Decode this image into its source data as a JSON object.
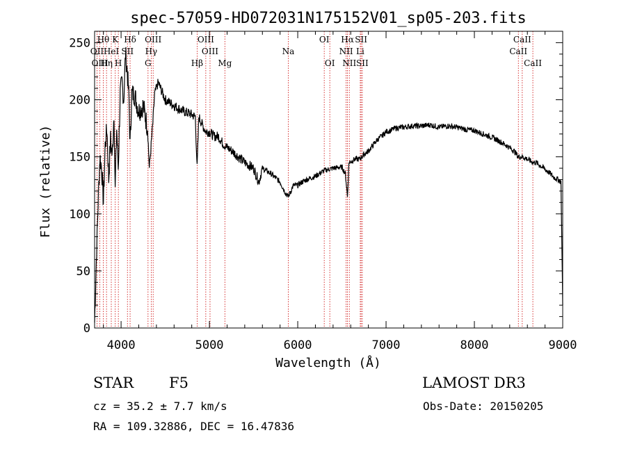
{
  "chart_data": {
    "type": "line",
    "title": "spec-57059-HD072031N175152V01_sp05-203.fits",
    "xlabel": "Wavelength (Å)",
    "ylabel": "Flux (relative)",
    "xlim": [
      3700,
      9000
    ],
    "ylim": [
      0,
      260
    ],
    "xticks": [
      4000,
      5000,
      6000,
      7000,
      8000,
      9000
    ],
    "yticks": [
      0,
      50,
      100,
      150,
      200,
      250
    ],
    "grid": false,
    "series": [
      {
        "values_x": [
          3700,
          3720,
          3740,
          3760,
          3780,
          3800,
          3820,
          3840,
          3860,
          3880,
          3900,
          3920,
          3933,
          3950,
          3968,
          3990,
          4010,
          4030,
          4050,
          4070,
          4090,
          4102,
          4120,
          4150,
          4200,
          4250,
          4300,
          4320,
          4340,
          4360,
          4380,
          4420,
          4500,
          4600,
          4700,
          4800,
          4840,
          4861,
          4880,
          4920,
          4960,
          5000,
          5050,
          5100,
          5150,
          5200,
          5260,
          5300,
          5400,
          5500,
          5560,
          5600,
          5700,
          5800,
          5850,
          5893,
          5950,
          6000,
          6050,
          6100,
          6200,
          6300,
          6400,
          6500,
          6540,
          6563,
          6580,
          6650,
          6700,
          6750,
          6800,
          6850,
          6900,
          6950,
          7000,
          7050,
          7100,
          7200,
          7300,
          7400,
          7500,
          7600,
          7700,
          7800,
          7900,
          8000,
          8100,
          8200,
          8300,
          8400,
          8450,
          8498,
          8542,
          8600,
          8662,
          8700,
          8750,
          8800,
          8850,
          8900,
          8950,
          8980,
          9000
        ],
        "values_y": [
          5,
          60,
          110,
          150,
          140,
          110,
          160,
          175,
          130,
          165,
          150,
          190,
          120,
          175,
          140,
          205,
          215,
          200,
          240,
          225,
          200,
          160,
          205,
          205,
          190,
          195,
          175,
          140,
          160,
          180,
          205,
          215,
          200,
          195,
          190,
          187,
          185,
          140,
          185,
          178,
          172,
          172,
          168,
          168,
          162,
          158,
          155,
          152,
          145,
          140,
          128,
          140,
          135,
          128,
          120,
          115,
          125,
          125,
          128,
          130,
          133,
          138,
          140,
          141,
          135,
          115,
          145,
          148,
          148,
          152,
          155,
          160,
          165,
          168,
          172,
          173,
          175,
          176,
          177,
          177,
          178,
          176,
          177,
          176,
          174,
          173,
          170,
          167,
          163,
          158,
          155,
          150,
          150,
          148,
          145,
          145,
          142,
          139,
          136,
          132,
          130,
          128,
          20
        ]
      }
    ],
    "line_markers": [
      {
        "label": "Hθ",
        "wavelength": 3798,
        "row": 0
      },
      {
        "label": "K",
        "wavelength": 3934,
        "row": 0
      },
      {
        "label": "Hδ",
        "wavelength": 4102,
        "row": 0
      },
      {
        "label": "OIII",
        "wavelength": 4363,
        "row": 0
      },
      {
        "label": "OIII",
        "wavelength": 4959,
        "row": 0
      },
      {
        "label": "OI",
        "wavelength": 6300,
        "row": 0
      },
      {
        "label": "Hα",
        "wavelength": 6563,
        "row": 0
      },
      {
        "label": "SII",
        "wavelength": 6717,
        "row": 0
      },
      {
        "label": "CaII",
        "wavelength": 8542,
        "row": 0
      },
      {
        "label": "OII",
        "wavelength": 3727,
        "row": 1
      },
      {
        "label": "HeI",
        "wavelength": 3889,
        "row": 1
      },
      {
        "label": "SII",
        "wavelength": 4072,
        "row": 1
      },
      {
        "label": "Hγ",
        "wavelength": 4341,
        "row": 1
      },
      {
        "label": "OIII",
        "wavelength": 5007,
        "row": 1
      },
      {
        "label": "Na",
        "wavelength": 5893,
        "row": 1
      },
      {
        "label": "NII",
        "wavelength": 6548,
        "row": 1
      },
      {
        "label": "Li",
        "wavelength": 6708,
        "row": 1
      },
      {
        "label": "CaII",
        "wavelength": 8498,
        "row": 1
      },
      {
        "label": "OIII",
        "wavelength": 3760,
        "row": 2
      },
      {
        "label": "Hη",
        "wavelength": 3835,
        "row": 2
      },
      {
        "label": "H",
        "wavelength": 3969,
        "row": 2
      },
      {
        "label": "G",
        "wavelength": 4305,
        "row": 2
      },
      {
        "label": "Hβ",
        "wavelength": 4861,
        "row": 2
      },
      {
        "label": "Mg",
        "wavelength": 5175,
        "row": 2
      },
      {
        "label": "OI",
        "wavelength": 6363,
        "row": 2
      },
      {
        "label": "NII",
        "wavelength": 6584,
        "row": 2
      },
      {
        "label": "SII",
        "wavelength": 6731,
        "row": 2
      },
      {
        "label": "CaII",
        "wavelength": 8662,
        "row": 2
      }
    ],
    "colors": {
      "spectrum": "#000000",
      "markers": "#cc0000",
      "axes": "#000000"
    }
  },
  "info": {
    "object_class": "STAR",
    "subclass": "F5",
    "survey": "LAMOST DR3",
    "redshift": "cz = 35.2 ± 7.7 km/s",
    "obs_date": "Obs-Date: 20150205",
    "coords": "RA = 109.32886, DEC =  16.47836"
  }
}
